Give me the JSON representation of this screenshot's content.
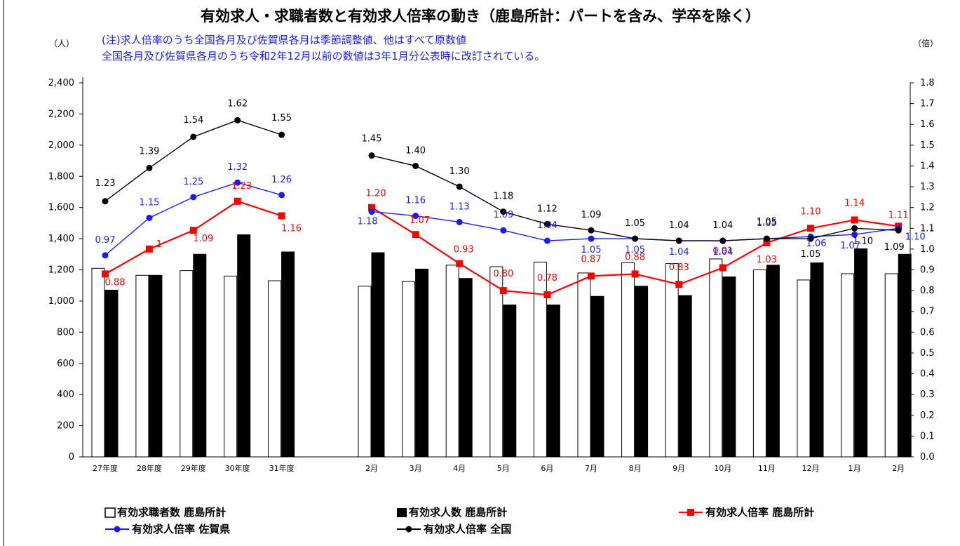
{
  "page": {
    "title": "有効求人・求職者数と有効求人倍率の動き（鹿島所計：パートを含み、学卒を除く）",
    "note_line1": "(注)求人倍率のうち全国各月及び佐賀県各月は季節調整値、他はすべて原数値",
    "note_line2": "全国各月及び佐賀県各月のうち令和2年12月以前の数値は3年1月分公表時に改訂されている。",
    "left_unit": "（人）",
    "right_unit": "（倍）"
  },
  "chart_data": {
    "type": "bar",
    "categories": [
      "27年度",
      "28年度",
      "29年度",
      "30年度",
      "31年度",
      "2月",
      "3月",
      "4月",
      "5月",
      "6月",
      "7月",
      "8月",
      "9月",
      "10月",
      "11月",
      "12月",
      "1月",
      "2月"
    ],
    "y_left": {
      "range": [
        0,
        2400
      ],
      "ticks": [
        0,
        200,
        400,
        600,
        800,
        "1,000",
        "1,200",
        "1,400",
        "1,600",
        "1,800",
        "2,000",
        "2,200",
        "2,400"
      ],
      "tick_values": [
        0,
        200,
        400,
        600,
        800,
        1000,
        1200,
        1400,
        1600,
        1800,
        2000,
        2200,
        2400
      ]
    },
    "y_right": {
      "range": [
        0,
        1.8
      ],
      "ticks": [
        "0.0",
        "0.1",
        "0.2",
        "0.3",
        "0.4",
        "0.5",
        "0.6",
        "0.7",
        "0.8",
        "0.9",
        "1.0",
        "1.1",
        "1.2",
        "1.3",
        "1.4",
        "1.5",
        "1.6",
        "1.7",
        "1.8"
      ],
      "tick_values": [
        0,
        0.1,
        0.2,
        0.3,
        0.4,
        0.5,
        0.6,
        0.7,
        0.8,
        0.9,
        1.0,
        1.1,
        1.2,
        1.3,
        1.4,
        1.5,
        1.6,
        1.7,
        1.8
      ]
    },
    "bar_series": [
      {
        "name": "有効求職者数 鹿島所計",
        "color": "#ffffff",
        "values": [
          1210,
          1165,
          1195,
          1160,
          1130,
          1095,
          1125,
          1230,
          1220,
          1250,
          1180,
          1245,
          1240,
          1270,
          1200,
          1135,
          1175,
          1175
        ]
      },
      {
        "name": "有効求人数 鹿島所計",
        "color": "#000000",
        "values": [
          1070,
          1165,
          1300,
          1425,
          1315,
          1310,
          1205,
          1145,
          975,
          975,
          1030,
          1095,
          1035,
          1155,
          1230,
          1245,
          1335,
          1300
        ]
      }
    ],
    "line_series": [
      {
        "name": "有効求人倍率 鹿島所計",
        "color": "#ff0000",
        "marker": "square",
        "values": [
          0.88,
          1.0,
          1.09,
          1.23,
          1.16,
          1.2,
          1.07,
          0.93,
          0.8,
          0.78,
          0.87,
          0.88,
          0.83,
          0.91,
          1.03,
          1.1,
          1.14,
          1.11
        ],
        "labels": [
          "0.88",
          "1",
          "1.09",
          "1.23",
          "1.16",
          "1.20",
          "1.07",
          "0.93",
          "0.80",
          "0.78",
          "0.87",
          "0.88",
          "0.83",
          "0.91",
          "1.03",
          "1.10",
          "1.14",
          "1.11"
        ]
      },
      {
        "name": "有効求人倍率 佐賀県",
        "color": "#1a1aff",
        "marker": "circle",
        "values": [
          0.97,
          1.15,
          1.25,
          1.32,
          1.26,
          1.18,
          1.16,
          1.13,
          1.09,
          1.04,
          1.05,
          1.05,
          1.04,
          1.04,
          1.05,
          1.06,
          1.07,
          1.1
        ],
        "labels": [
          "0.97",
          "1.15",
          "1.25",
          "1.32",
          "1.26",
          "1.18",
          "1.16",
          "1.13",
          "1.09",
          "1.04",
          "1.05",
          "1.05",
          "1.04",
          "1.04",
          "1.05",
          "1.06",
          "1.07",
          "1.10"
        ]
      },
      {
        "name": "有効求人倍率 全国",
        "color": "#000000",
        "marker": "circle",
        "values": [
          1.23,
          1.39,
          1.54,
          1.62,
          1.55,
          1.45,
          1.4,
          1.3,
          1.18,
          1.12,
          1.09,
          1.05,
          1.04,
          1.04,
          1.05,
          1.05,
          1.1,
          1.09
        ],
        "labels": [
          "1.23",
          "1.39",
          "1.54",
          "1.62",
          "1.55",
          "1.45",
          "1.40",
          "1.30",
          "1.18",
          "1.12",
          "1.09",
          "1.05",
          "1.04",
          "1.04",
          "1.05",
          "1.05",
          "1.10",
          "1.09"
        ]
      }
    ],
    "legend": [
      "有効求職者数 鹿島所計",
      "有効求人数 鹿島所計",
      "有効求人倍率 鹿島所計",
      "有効求人倍率 佐賀県",
      "有効求人倍率 全国"
    ],
    "legend_position": "bottom",
    "grid": false
  }
}
